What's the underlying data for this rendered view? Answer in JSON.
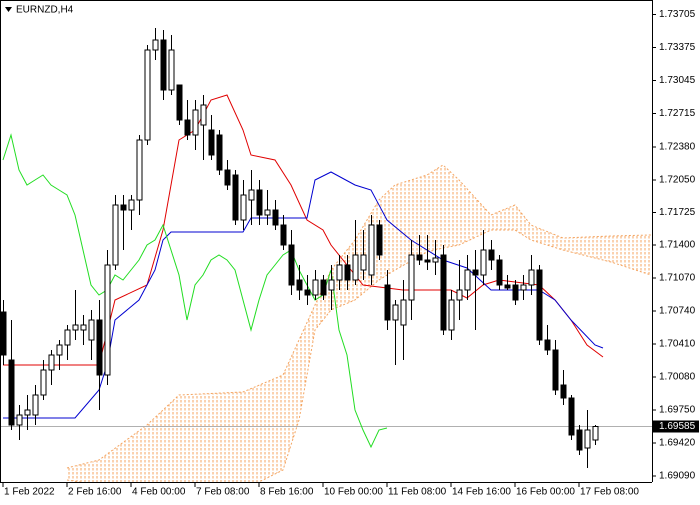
{
  "chart_data": {
    "type": "candlestick",
    "title": "EURNZD,H4",
    "xlim": [
      -0.375,
      81.125
    ],
    "ylim": [
      1.6903,
      1.7385
    ],
    "xticks": [
      {
        "value": 0,
        "label": "1 Feb 2022"
      },
      {
        "value": 8,
        "label": "2 Feb 16:00"
      },
      {
        "value": 16,
        "label": "4 Feb 00:00"
      },
      {
        "value": 24,
        "label": "7 Feb 08:00"
      },
      {
        "value": 32,
        "label": "8 Feb 16:00"
      },
      {
        "value": 40,
        "label": "10 Feb 00:00"
      },
      {
        "value": 48,
        "label": "11 Feb 08:00"
      },
      {
        "value": 56,
        "label": "14 Feb 16:00"
      },
      {
        "value": 64,
        "label": "16 Feb 00:00"
      },
      {
        "value": 72,
        "label": "17 Feb 08:00"
      }
    ],
    "yticks": [
      1.73705,
      1.73375,
      1.73045,
      1.72715,
      {
        "value": 1.7238,
        "label": "1.72380"
      },
      {
        "value": 1.7205,
        "label": "1.72050"
      },
      1.71725,
      {
        "value": 1.714,
        "label": "1.71400"
      },
      {
        "value": 1.7107,
        "label": "1.71070"
      },
      {
        "value": 1.7074,
        "label": "1.70740"
      },
      {
        "value": 1.7041,
        "label": "1.70410"
      },
      {
        "value": 1.7008,
        "label": "1.70080"
      },
      {
        "value": 1.6975,
        "label": "1.69750"
      },
      {
        "value": 1.6942,
        "label": "1.69420"
      },
      {
        "value": 1.6909,
        "label": "1.69090"
      }
    ],
    "current_price": 1.69585,
    "open": [
      1.7073,
      1.7025,
      1.696,
      1.697,
      1.697,
      1.699,
      1.7015,
      1.703,
      1.704,
      1.7055,
      1.7055,
      1.7045,
      1.7065,
      1.701,
      1.712,
      1.718,
      1.7175,
      1.7185,
      1.7245,
      1.7335,
      1.7345,
      1.7295,
      1.73,
      1.7265,
      1.725,
      1.726,
      1.7255,
      1.725,
      1.7215,
      1.721,
      1.7165,
      1.7185,
      1.7195,
      1.717,
      1.7175,
      1.716,
      1.714,
      1.7105,
      1.7095,
      1.709,
      1.7105,
      1.7095,
      1.7105,
      1.712,
      1.7105,
      1.7115,
      1.711,
      1.716,
      1.71,
      1.7065,
      1.706,
      1.7085,
      1.713,
      1.7125,
      1.7123,
      1.713,
      1.7055,
      1.7085,
      1.7095,
      1.7115,
      1.711,
      1.7135,
      1.7125,
      1.71,
      1.71,
      1.7095,
      1.71,
      1.7115,
      1.7045,
      1.7035,
      1.7,
      1.6987,
      1.6955,
      1.6937,
      1.6945
    ],
    "high": [
      1.7085,
      1.7065,
      1.698,
      1.699,
      1.7,
      1.7025,
      1.7035,
      1.7045,
      1.706,
      1.7095,
      1.707,
      1.7075,
      1.7085,
      1.7135,
      1.719,
      1.719,
      1.719,
      1.725,
      1.734,
      1.7357,
      1.7355,
      1.735,
      1.73,
      1.7285,
      1.7285,
      1.729,
      1.727,
      1.7255,
      1.7225,
      1.7215,
      1.7205,
      1.7215,
      1.7205,
      1.7195,
      1.7185,
      1.717,
      1.7155,
      1.712,
      1.711,
      1.7115,
      1.711,
      1.712,
      1.713,
      1.713,
      1.7165,
      1.7155,
      1.717,
      1.7165,
      1.7115,
      1.7085,
      1.7105,
      1.7145,
      1.715,
      1.715,
      1.7145,
      1.714,
      1.7095,
      1.7125,
      1.713,
      1.7135,
      1.7155,
      1.7145,
      1.713,
      1.711,
      1.7105,
      1.711,
      1.713,
      1.712,
      1.706,
      1.7045,
      1.7015,
      1.699,
      1.696,
      1.6975,
      1.696
    ],
    "low": [
      1.702,
      1.6955,
      1.6945,
      1.6955,
      1.696,
      1.6985,
      1.7,
      1.7015,
      1.7025,
      1.7045,
      1.704,
      1.7025,
      1.6975,
      1.7,
      1.7115,
      1.7135,
      1.7155,
      1.717,
      1.724,
      1.7325,
      1.7285,
      1.729,
      1.726,
      1.7245,
      1.7235,
      1.7225,
      1.7225,
      1.721,
      1.7195,
      1.716,
      1.7155,
      1.716,
      1.716,
      1.716,
      1.7155,
      1.7135,
      1.709,
      1.7085,
      1.708,
      1.7085,
      1.7085,
      1.7075,
      1.7095,
      1.7095,
      1.71,
      1.7105,
      1.71,
      1.7125,
      1.7055,
      1.702,
      1.7025,
      1.7065,
      1.712,
      1.7115,
      1.711,
      1.705,
      1.7045,
      1.7065,
      1.7085,
      1.7055,
      1.71,
      1.7115,
      1.7095,
      1.7095,
      1.708,
      1.7085,
      1.709,
      1.704,
      1.703,
      1.699,
      1.698,
      1.6945,
      1.693,
      1.6917,
      1.694
    ],
    "close": [
      1.703,
      1.696,
      1.697,
      1.6975,
      1.699,
      1.7015,
      1.703,
      1.704,
      1.7055,
      1.706,
      1.706,
      1.7065,
      1.701,
      1.712,
      1.718,
      1.7175,
      1.7185,
      1.7245,
      1.7335,
      1.7345,
      1.7295,
      1.7335,
      1.7265,
      1.725,
      1.7275,
      1.728,
      1.723,
      1.7215,
      1.72,
      1.7165,
      1.719,
      1.7195,
      1.717,
      1.7175,
      1.716,
      1.714,
      1.71,
      1.7095,
      1.709,
      1.7105,
      1.709,
      1.7105,
      1.712,
      1.7105,
      1.713,
      1.713,
      1.716,
      1.713,
      1.7065,
      1.708,
      1.7085,
      1.713,
      1.7125,
      1.7123,
      1.7127,
      1.7055,
      1.7085,
      1.7095,
      1.7115,
      1.711,
      1.7135,
      1.7125,
      1.71,
      1.7097,
      1.7085,
      1.71,
      1.7115,
      1.7045,
      1.7035,
      1.6995,
      1.6987,
      1.695,
      1.6935,
      1.6955,
      1.69585
    ],
    "cloud": {
      "color": "#f4a460",
      "x": [
        8,
        12,
        18,
        22,
        30,
        35,
        37,
        39,
        41,
        44,
        47,
        49,
        53,
        55,
        57,
        61,
        64,
        66,
        70,
        76,
        81
      ],
      "span_a": [
        1.6917,
        1.6925,
        1.696,
        1.699,
        1.6993,
        1.701,
        1.7045,
        1.708,
        1.7115,
        1.7145,
        1.7185,
        1.72,
        1.721,
        1.722,
        1.7205,
        1.717,
        1.718,
        1.716,
        1.7147,
        1.7149,
        1.715
      ],
      "span_b": [
        1.6905,
        1.69,
        1.6895,
        1.6895,
        1.6895,
        1.6915,
        1.6965,
        1.7055,
        1.7075,
        1.7085,
        1.7105,
        1.7115,
        1.7133,
        1.7137,
        1.714,
        1.7155,
        1.7155,
        1.7145,
        1.7135,
        1.7123,
        1.711
      ]
    },
    "lines": [
      {
        "color": "#e00000",
        "x": [
          0,
          12,
          14,
          18,
          20,
          22,
          24,
          26,
          28,
          30,
          31,
          34,
          36,
          38,
          40,
          41,
          43,
          45,
          50,
          56,
          58,
          60,
          62,
          67,
          69,
          71,
          73,
          75
        ],
        "values": [
          1.702,
          1.702,
          1.7085,
          1.71,
          1.7155,
          1.7245,
          1.7255,
          1.7285,
          1.729,
          1.7255,
          1.723,
          1.7225,
          1.72,
          1.7165,
          1.7155,
          1.714,
          1.712,
          1.71,
          1.7095,
          1.7095,
          1.7087,
          1.71,
          1.7105,
          1.71,
          1.7085,
          1.7065,
          1.704,
          1.7028
        ]
      },
      {
        "color": "#0000d0",
        "x": [
          0,
          9,
          12,
          13,
          14,
          17,
          19,
          20,
          21,
          30,
          31,
          38,
          39,
          41,
          44,
          46,
          48,
          51,
          55,
          58,
          61,
          67,
          69,
          71,
          74,
          75
        ],
        "values": [
          1.6967,
          1.6967,
          1.6995,
          1.702,
          1.7065,
          1.7085,
          1.7115,
          1.7145,
          1.7153,
          1.7153,
          1.7167,
          1.7167,
          1.7205,
          1.7213,
          1.72,
          1.7195,
          1.7165,
          1.7145,
          1.7125,
          1.7117,
          1.7095,
          1.7095,
          1.7085,
          1.7065,
          1.704,
          1.7037
        ]
      },
      {
        "color": "#22dd22",
        "x": [
          0,
          1,
          2,
          3,
          4,
          5,
          6,
          7,
          8,
          9,
          10,
          11,
          12,
          13,
          14,
          15,
          16,
          17,
          18,
          19,
          20,
          21,
          22,
          23,
          24,
          25,
          26,
          27,
          28,
          29,
          30,
          31,
          32,
          33,
          34,
          35,
          36,
          37,
          38,
          39,
          40,
          41,
          42,
          43,
          44,
          45,
          46,
          47,
          48
        ],
        "values": [
          1.7225,
          1.725,
          1.7215,
          1.72,
          1.7205,
          1.721,
          1.72,
          1.7195,
          1.719,
          1.717,
          1.7135,
          1.71,
          1.709,
          1.7095,
          1.711,
          1.7105,
          1.7115,
          1.7125,
          1.714,
          1.7145,
          1.716,
          1.7135,
          1.711,
          1.7065,
          1.71,
          1.711,
          1.7125,
          1.713,
          1.7125,
          1.7115,
          1.7085,
          1.7055,
          1.7085,
          1.711,
          1.712,
          1.713,
          1.7135,
          1.7115,
          1.71,
          1.7085,
          1.709,
          1.7115,
          1.7055,
          1.703,
          1.6975,
          1.6955,
          1.6938,
          1.6955,
          1.6957
        ]
      }
    ]
  }
}
